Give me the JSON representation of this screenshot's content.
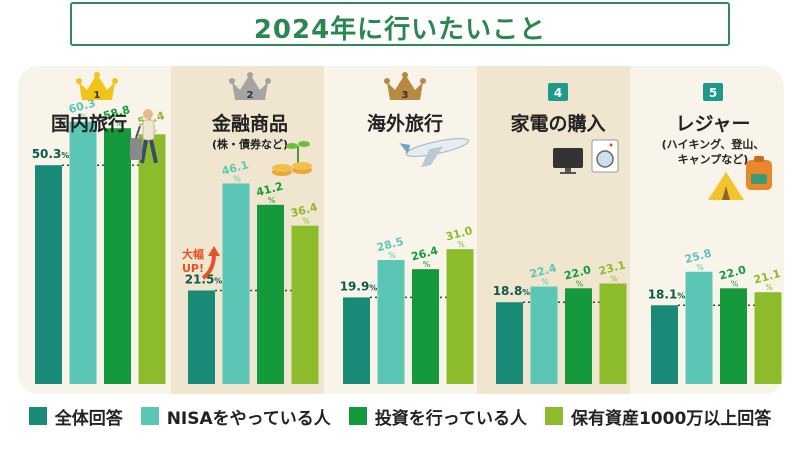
{
  "title": "2024年に行いたいこと",
  "chart_data": {
    "type": "bar",
    "unit": "%",
    "categories": [
      {
        "rank": "1",
        "label": "国内旅行",
        "sub": []
      },
      {
        "rank": "2",
        "label": "金融商品",
        "sub": [
          "(株・債券など)"
        ]
      },
      {
        "rank": "3",
        "label": "海外旅行",
        "sub": []
      },
      {
        "rank": "4",
        "label": "家電の購入",
        "sub": []
      },
      {
        "rank": "5",
        "label": "レジャー",
        "sub": [
          "(ハイキング、登山、",
          "キャンプなど)"
        ]
      }
    ],
    "series": [
      {
        "name": "全体回答",
        "color": "#1a8a78",
        "values": [
          50.3,
          21.5,
          19.9,
          18.8,
          18.1
        ]
      },
      {
        "name": "NISAをやっている人",
        "color": "#5cc6b6",
        "values": [
          60.3,
          46.1,
          28.5,
          22.4,
          25.8
        ]
      },
      {
        "name": "投資を行っている人",
        "color": "#149a3c",
        "values": [
          58.8,
          41.2,
          26.4,
          22.0,
          22.0
        ]
      },
      {
        "name": "保有資産1000万以上回答",
        "color": "#8cbb2c",
        "values": [
          57.4,
          36.4,
          31.0,
          23.1,
          21.1
        ]
      }
    ],
    "annotation": "大幅UP!",
    "ylim": [
      0,
      70
    ],
    "grid": false,
    "legend_position": "bottom"
  },
  "colors": {
    "title": "#2a8750",
    "panel": "#f8f4ea",
    "stripe": "#f0e6cf",
    "rank_gold": "#f2c318",
    "rank_silver": "#a4a4a4",
    "rank_bronze": "#b88942",
    "rank_badge": "#1f9a8a",
    "annotation": "#e4512a"
  },
  "icons": [
    "crown-gold-icon",
    "crown-silver-icon",
    "crown-bronze-icon",
    "traveler-icon",
    "plant-coins-icon",
    "airplane-icon",
    "tv-icon",
    "washing-machine-icon",
    "tent-icon",
    "backpack-icon"
  ]
}
